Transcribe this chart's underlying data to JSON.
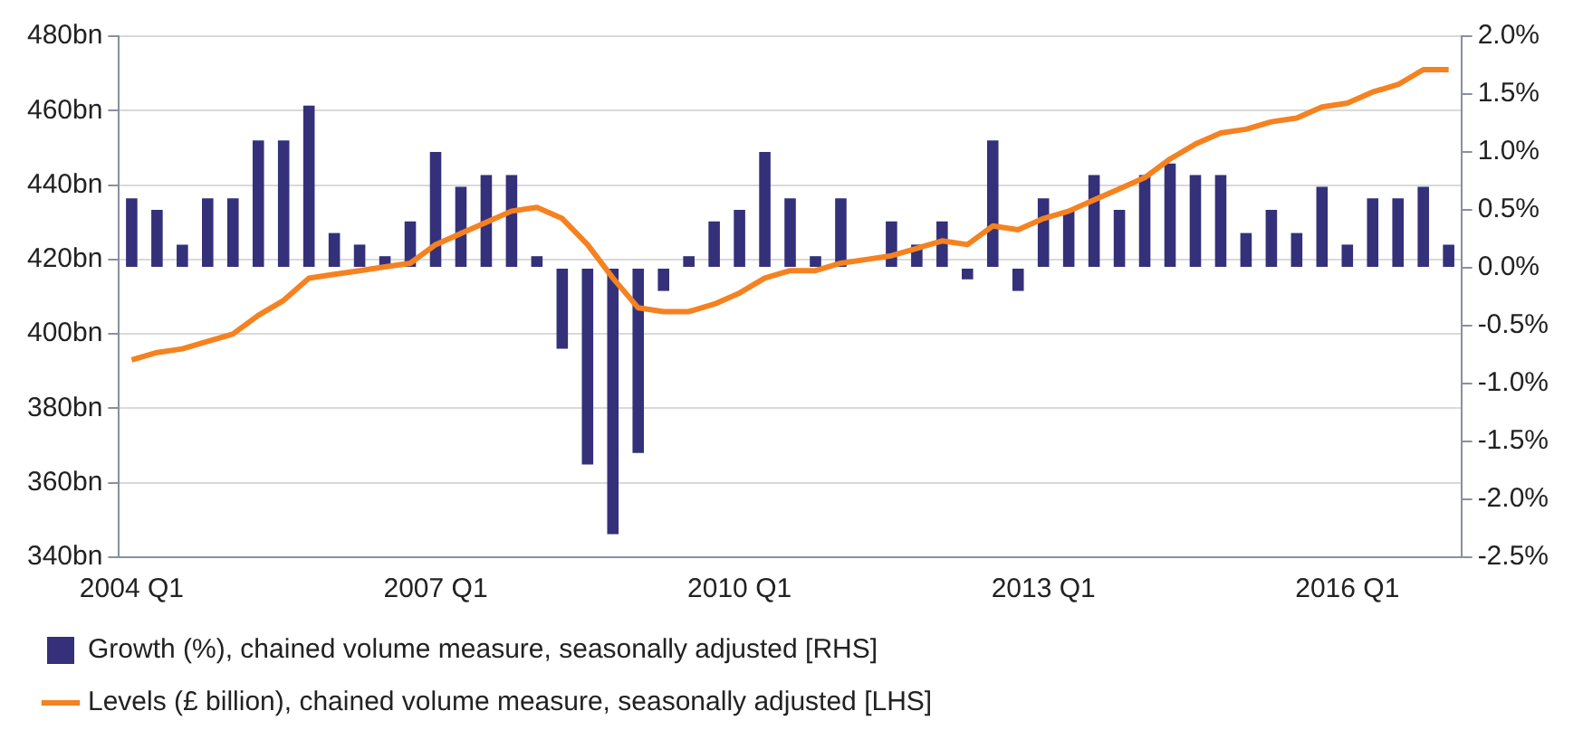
{
  "chart_data": {
    "type": "bar",
    "categories": [
      "2004 Q1",
      null,
      null,
      null,
      null,
      null,
      null,
      null,
      null,
      null,
      null,
      null,
      "2007 Q1",
      null,
      null,
      null,
      null,
      null,
      null,
      null,
      null,
      null,
      null,
      null,
      "2010 Q1",
      null,
      null,
      null,
      null,
      null,
      null,
      null,
      null,
      null,
      null,
      null,
      "2013 Q1",
      null,
      null,
      null,
      null,
      null,
      null,
      null,
      null,
      null,
      null,
      null,
      "2016 Q1",
      null,
      null,
      null,
      null
    ],
    "series": [
      {
        "name": "Growth (%), chained volume measure, seasonally adjusted [RHS]",
        "axis": "y2",
        "color": "#35307a",
        "values": [
          0.6,
          0.5,
          0.2,
          0.6,
          0.6,
          1.1,
          1.1,
          1.4,
          0.3,
          0.2,
          0.1,
          0.4,
          1.0,
          0.7,
          0.8,
          0.8,
          0.1,
          -0.7,
          -1.7,
          -2.3,
          -1.6,
          -0.2,
          0.1,
          0.4,
          0.5,
          1.0,
          0.6,
          0.1,
          0.6,
          0.0,
          0.4,
          0.2,
          0.4,
          -0.1,
          1.1,
          -0.2,
          0.6,
          0.5,
          0.8,
          0.5,
          0.8,
          0.9,
          0.8,
          0.8,
          0.3,
          0.5,
          0.3,
          0.7,
          0.2,
          0.6,
          0.6,
          0.7,
          0.2
        ]
      },
      {
        "name": "Levels (£ billion), chained volume measure, seasonally adjusted [LHS]",
        "type": "line",
        "axis": "y",
        "color": "#f58220",
        "values": [
          393,
          395,
          396,
          398,
          400,
          405,
          409,
          415,
          416,
          417,
          418,
          419,
          424,
          427,
          430,
          433,
          434,
          431,
          424,
          415,
          407,
          406,
          406,
          408,
          411,
          415,
          417,
          417,
          419,
          420,
          421,
          423,
          425,
          424,
          429,
          428,
          431,
          433,
          436,
          439,
          442,
          447,
          451,
          454,
          455,
          457,
          458,
          461,
          462,
          465,
          467,
          471,
          471
        ]
      }
    ],
    "ylim": [
      340,
      480
    ],
    "yticks": [
      {
        "value": 340,
        "label": "340bn"
      },
      {
        "value": 360,
        "label": "360bn"
      },
      {
        "value": 380,
        "label": "380bn"
      },
      {
        "value": 400,
        "label": "400bn"
      },
      {
        "value": 420,
        "label": "420bn"
      },
      {
        "value": 440,
        "label": "440bn"
      },
      {
        "value": 460,
        "label": "460bn"
      },
      {
        "value": 480,
        "label": "480bn"
      }
    ],
    "y2lim": [
      -2.5,
      2.0
    ],
    "y2ticks": [
      {
        "value": -2.5,
        "label": "-2.5%"
      },
      {
        "value": -2.0,
        "label": "-2.0%"
      },
      {
        "value": -1.5,
        "label": "-1.5%"
      },
      {
        "value": -1.0,
        "label": "-1.0%"
      },
      {
        "value": -0.5,
        "label": "-0.5%"
      },
      {
        "value": 0,
        "label": "0.0%"
      },
      {
        "value": 0.5,
        "label": "0.5%"
      },
      {
        "value": 1.0,
        "label": "1.0%"
      },
      {
        "value": 1.5,
        "label": "1.5%"
      },
      {
        "value": 2.0,
        "label": "2.0%"
      }
    ],
    "grid": "y",
    "legend": "bottom",
    "marker": "none"
  }
}
